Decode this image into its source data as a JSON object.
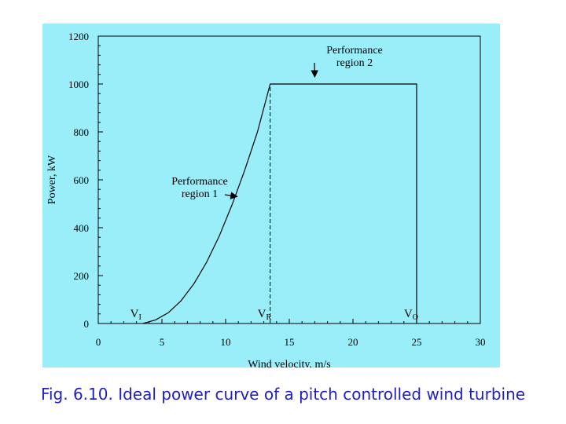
{
  "caption": "Fig. 6.10. Ideal power curve of a pitch controlled wind turbine",
  "colors": {
    "panel_background": "#9aeefa",
    "caption_text": "#1f1fbf",
    "line": "#000000"
  },
  "chart_data": {
    "type": "line",
    "title": "",
    "xlabel": "Wind velocity, m/s",
    "ylabel": "Power, kW",
    "xlim": [
      0,
      30
    ],
    "ylim": [
      0,
      1200
    ],
    "x_ticks": [
      0,
      5,
      10,
      15,
      20,
      25,
      30
    ],
    "y_ticks": [
      0,
      200,
      400,
      600,
      800,
      1000,
      1200
    ],
    "grid": false,
    "series": [
      {
        "x": [
          3.5,
          4.5,
          5.5,
          6.5,
          7.5,
          8.5,
          9.5,
          10.5,
          11.5,
          12.5,
          13.5,
          25,
          25
        ],
        "y": [
          0,
          15,
          45,
          95,
          165,
          255,
          365,
          495,
          640,
          800,
          1000,
          1000,
          0
        ]
      }
    ],
    "reference_lines": [
      {
        "orientation": "vertical",
        "x": 13.5,
        "y_from": 0,
        "y_to": 1000,
        "style": "dashed"
      }
    ],
    "markers": [
      {
        "base": "V",
        "sub": "I",
        "x": 3,
        "y": 0
      },
      {
        "base": "V",
        "sub": "R",
        "x": 13,
        "y": 0
      },
      {
        "base": "V",
        "sub": "O",
        "x": 24.5,
        "y": 0
      }
    ],
    "annotations": [
      {
        "lines": [
          "Performance",
          "region 1"
        ],
        "arrow_to": {
          "x": 10.9,
          "y": 530
        }
      },
      {
        "lines": [
          "Performance",
          "region 2"
        ],
        "arrow_to": {
          "x": 17,
          "y": 1030
        }
      }
    ]
  }
}
